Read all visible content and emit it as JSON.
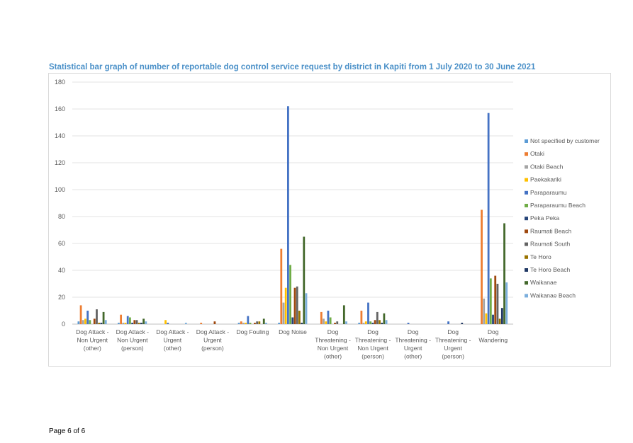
{
  "chart_data": {
    "type": "bar",
    "title": "Statistical bar graph of number of reportable dog control service request by district in Kapiti from 1 July 2020 to 30 June 2021",
    "xlabel": "",
    "ylabel": "",
    "ylim": [
      0,
      180
    ],
    "yticks": [
      0,
      20,
      40,
      60,
      80,
      100,
      120,
      140,
      160,
      180
    ],
    "grid": true,
    "legend_position": "right",
    "categories": [
      [
        "Dog Attack -",
        "Non Urgent",
        "(other)"
      ],
      [
        "Dog Attack -",
        "Non Urgent",
        "(person)"
      ],
      [
        "Dog Attack -",
        "Urgent",
        "(other)"
      ],
      [
        "Dog Attack -",
        "Urgent",
        "(person)"
      ],
      [
        "Dog Fouling"
      ],
      [
        "Dog Noise"
      ],
      [
        "Dog",
        "Threatening -",
        "Non Urgent",
        "(other)"
      ],
      [
        "Dog",
        "Threatening -",
        "Non Urgent",
        "(person)"
      ],
      [
        "Dog",
        "Threatening -",
        "Urgent",
        "(other)"
      ],
      [
        "Dog",
        "Threatening -",
        "Urgent",
        "(person)"
      ],
      [
        "Dog",
        "Wandering"
      ]
    ],
    "series": [
      {
        "name": "Not specified by customer",
        "color": "#5b9bd5",
        "values": [
          2,
          1,
          0,
          0,
          1,
          1,
          0,
          1,
          0,
          0,
          0
        ]
      },
      {
        "name": "Otaki",
        "color": "#ed7d31",
        "values": [
          14,
          7,
          0,
          1,
          2,
          56,
          9,
          10,
          0,
          0,
          85
        ]
      },
      {
        "name": "Otaki Beach",
        "color": "#a5a5a5",
        "values": [
          3,
          1,
          0,
          0,
          1,
          16,
          4,
          1,
          0,
          0,
          19
        ]
      },
      {
        "name": "Paekakariki",
        "color": "#ffc000",
        "values": [
          4,
          1,
          3,
          0,
          1,
          27,
          2,
          2,
          0,
          0,
          8
        ]
      },
      {
        "name": "Paraparaumu",
        "color": "#4472c4",
        "values": [
          10,
          6,
          1,
          0,
          6,
          162,
          10,
          16,
          1,
          2,
          157
        ]
      },
      {
        "name": "Paraparaumu Beach",
        "color": "#70ad47",
        "values": [
          3,
          5,
          0,
          0,
          1,
          44,
          5,
          2,
          0,
          0,
          34
        ]
      },
      {
        "name": "Peka Peka",
        "color": "#264478",
        "values": [
          0,
          1,
          0,
          0,
          0,
          5,
          0,
          1,
          0,
          0,
          7
        ]
      },
      {
        "name": "Raumati Beach",
        "color": "#9e480e",
        "values": [
          4,
          3,
          0,
          2,
          1,
          27,
          1,
          3,
          0,
          0,
          36
        ]
      },
      {
        "name": "Raumati South",
        "color": "#636363",
        "values": [
          11,
          3,
          0,
          0,
          2,
          28,
          2,
          9,
          0,
          0,
          30
        ]
      },
      {
        "name": "Te Horo",
        "color": "#997300",
        "values": [
          1,
          1,
          0,
          0,
          2,
          10,
          0,
          3,
          0,
          0,
          4
        ]
      },
      {
        "name": "Te Horo Beach",
        "color": "#203864",
        "values": [
          1,
          1,
          0,
          0,
          0,
          1,
          0,
          1,
          0,
          1,
          12
        ]
      },
      {
        "name": "Waikanae",
        "color": "#43682b",
        "values": [
          9,
          4,
          0,
          0,
          4,
          65,
          14,
          8,
          0,
          0,
          75
        ]
      },
      {
        "name": "Waikanae Beach",
        "color": "#7cafdd",
        "values": [
          3,
          2,
          1,
          0,
          1,
          23,
          2,
          3,
          0,
          0,
          31
        ]
      }
    ]
  },
  "footer": {
    "page_label": "Page 6 of 6"
  }
}
